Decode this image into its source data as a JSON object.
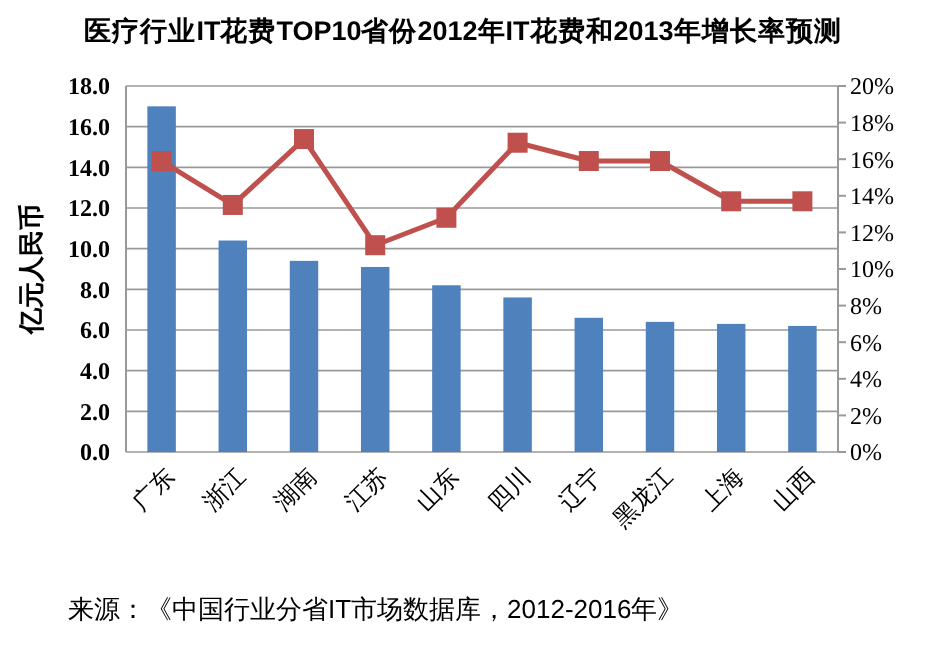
{
  "chart_data": {
    "type": "bar",
    "title": "医疗行业IT花费TOP10省份2012年IT花费和2013年增长率预测",
    "ylabel": "亿元人民币",
    "categories": [
      "广东",
      "浙江",
      "湖南",
      "江苏",
      "山东",
      "四川",
      "辽宁",
      "黑龙江",
      "上海",
      "山西"
    ],
    "series": [
      {
        "color": "#4f81bd",
        "values": [
          17.0,
          10.4,
          9.4,
          9.1,
          8.2,
          7.6,
          6.6,
          6.4,
          6.3,
          6.2
        ]
      },
      {
        "type": "line",
        "axis": "y2",
        "color": "#c0504d",
        "marker": "square",
        "line_style": "solid",
        "values": [
          15.9,
          13.5,
          17.1,
          11.3,
          12.8,
          16.9,
          15.9,
          15.9,
          13.7,
          13.7
        ]
      }
    ],
    "ylim": [
      0,
      18
    ],
    "yticks": [
      {
        "value": 0,
        "label": "0.0"
      },
      {
        "value": 2,
        "label": "2.0"
      },
      {
        "value": 4,
        "label": "4.0"
      },
      {
        "value": 6,
        "label": "6.0"
      },
      {
        "value": 8,
        "label": "8.0"
      },
      {
        "value": 10,
        "label": "10.0"
      },
      {
        "value": 12,
        "label": "12.0"
      },
      {
        "value": 14,
        "label": "14.0"
      },
      {
        "value": 16,
        "label": "16.0"
      },
      {
        "value": 18,
        "label": "18.0"
      }
    ],
    "y2lim": [
      0,
      20
    ],
    "y2ticks": [
      {
        "value": 0,
        "label": "0%"
      },
      {
        "value": 2,
        "label": "2%"
      },
      {
        "value": 4,
        "label": "4%"
      },
      {
        "value": 6,
        "label": "6%"
      },
      {
        "value": 8,
        "label": "8%"
      },
      {
        "value": 10,
        "label": "10%"
      },
      {
        "value": 12,
        "label": "12%"
      },
      {
        "value": 14,
        "label": "14%"
      },
      {
        "value": 16,
        "label": "16%"
      },
      {
        "value": 18,
        "label": "18%"
      },
      {
        "value": 20,
        "label": "20%"
      }
    ],
    "grid": "y",
    "annotations": [
      "来源：《中国行业分省IT市场数据库，2012-2016年》"
    ]
  }
}
